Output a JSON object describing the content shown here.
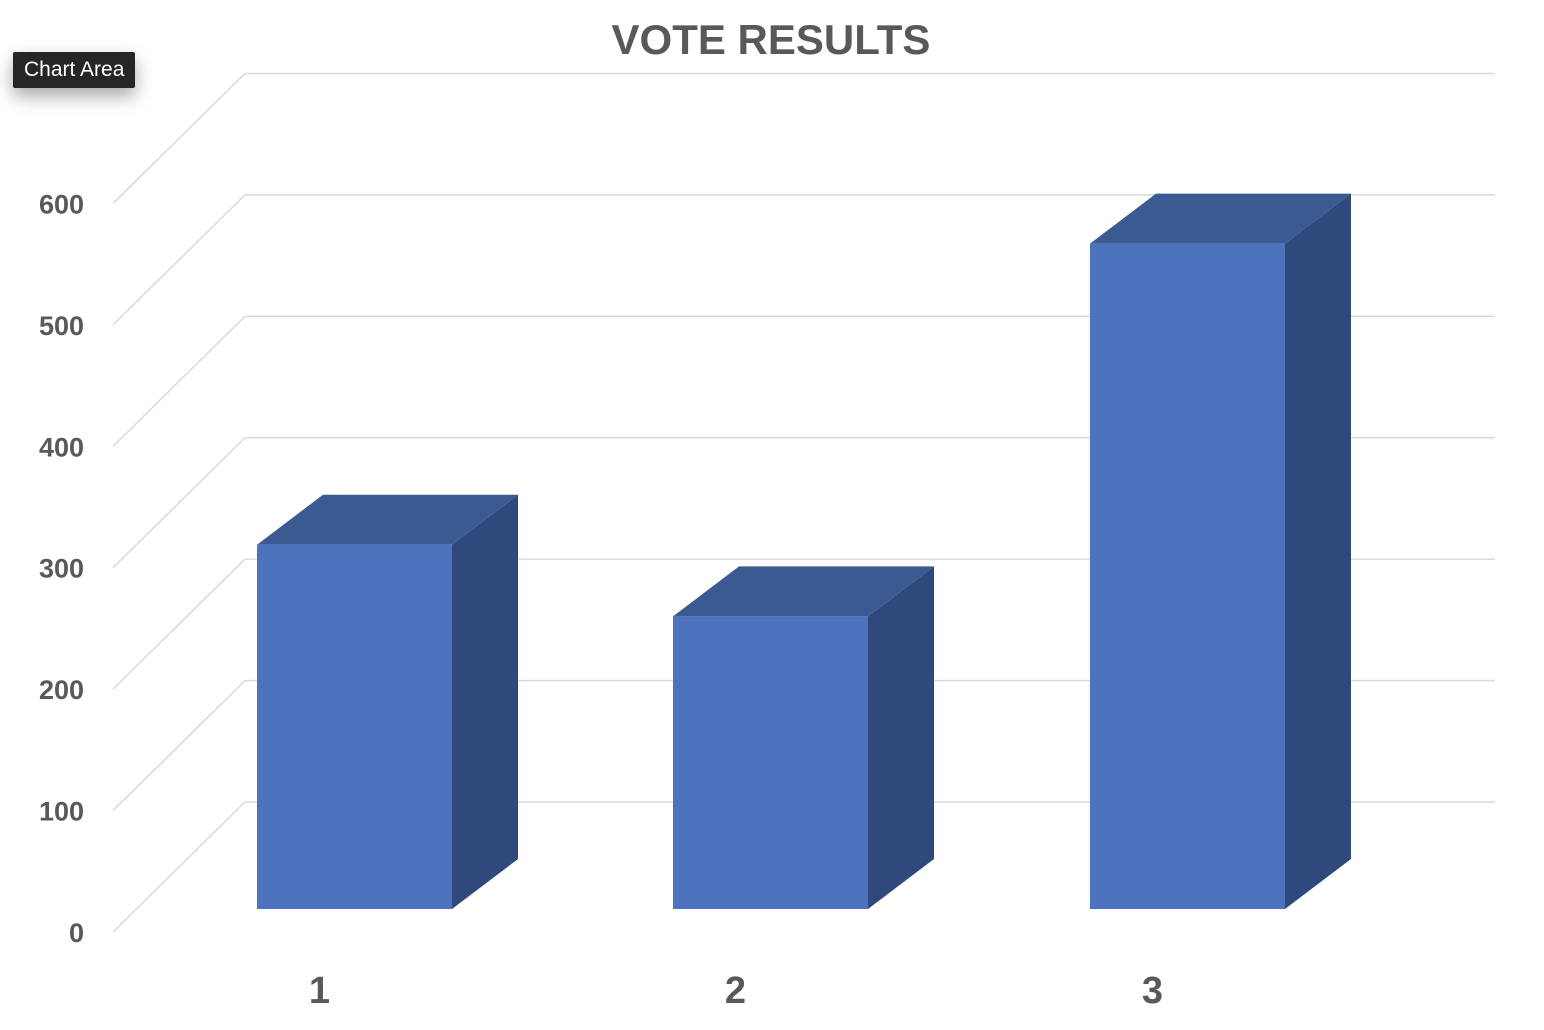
{
  "tooltip": {
    "label": "Chart Area"
  },
  "chart_data": {
    "type": "bar",
    "style": "3d-column",
    "title": "VOTE RESULTS",
    "categories": [
      "1",
      "2",
      "3"
    ],
    "values": [
      300,
      241,
      548
    ],
    "ylim": [
      0,
      600
    ],
    "yticks": [
      0,
      100,
      200,
      300,
      400,
      500,
      600
    ],
    "grid": true,
    "legend": "none",
    "colors": {
      "front": "#4E73BE",
      "top": "#3A5A91",
      "side": "#30497C",
      "grid": "#D9D9D9",
      "text": "#595959"
    }
  }
}
